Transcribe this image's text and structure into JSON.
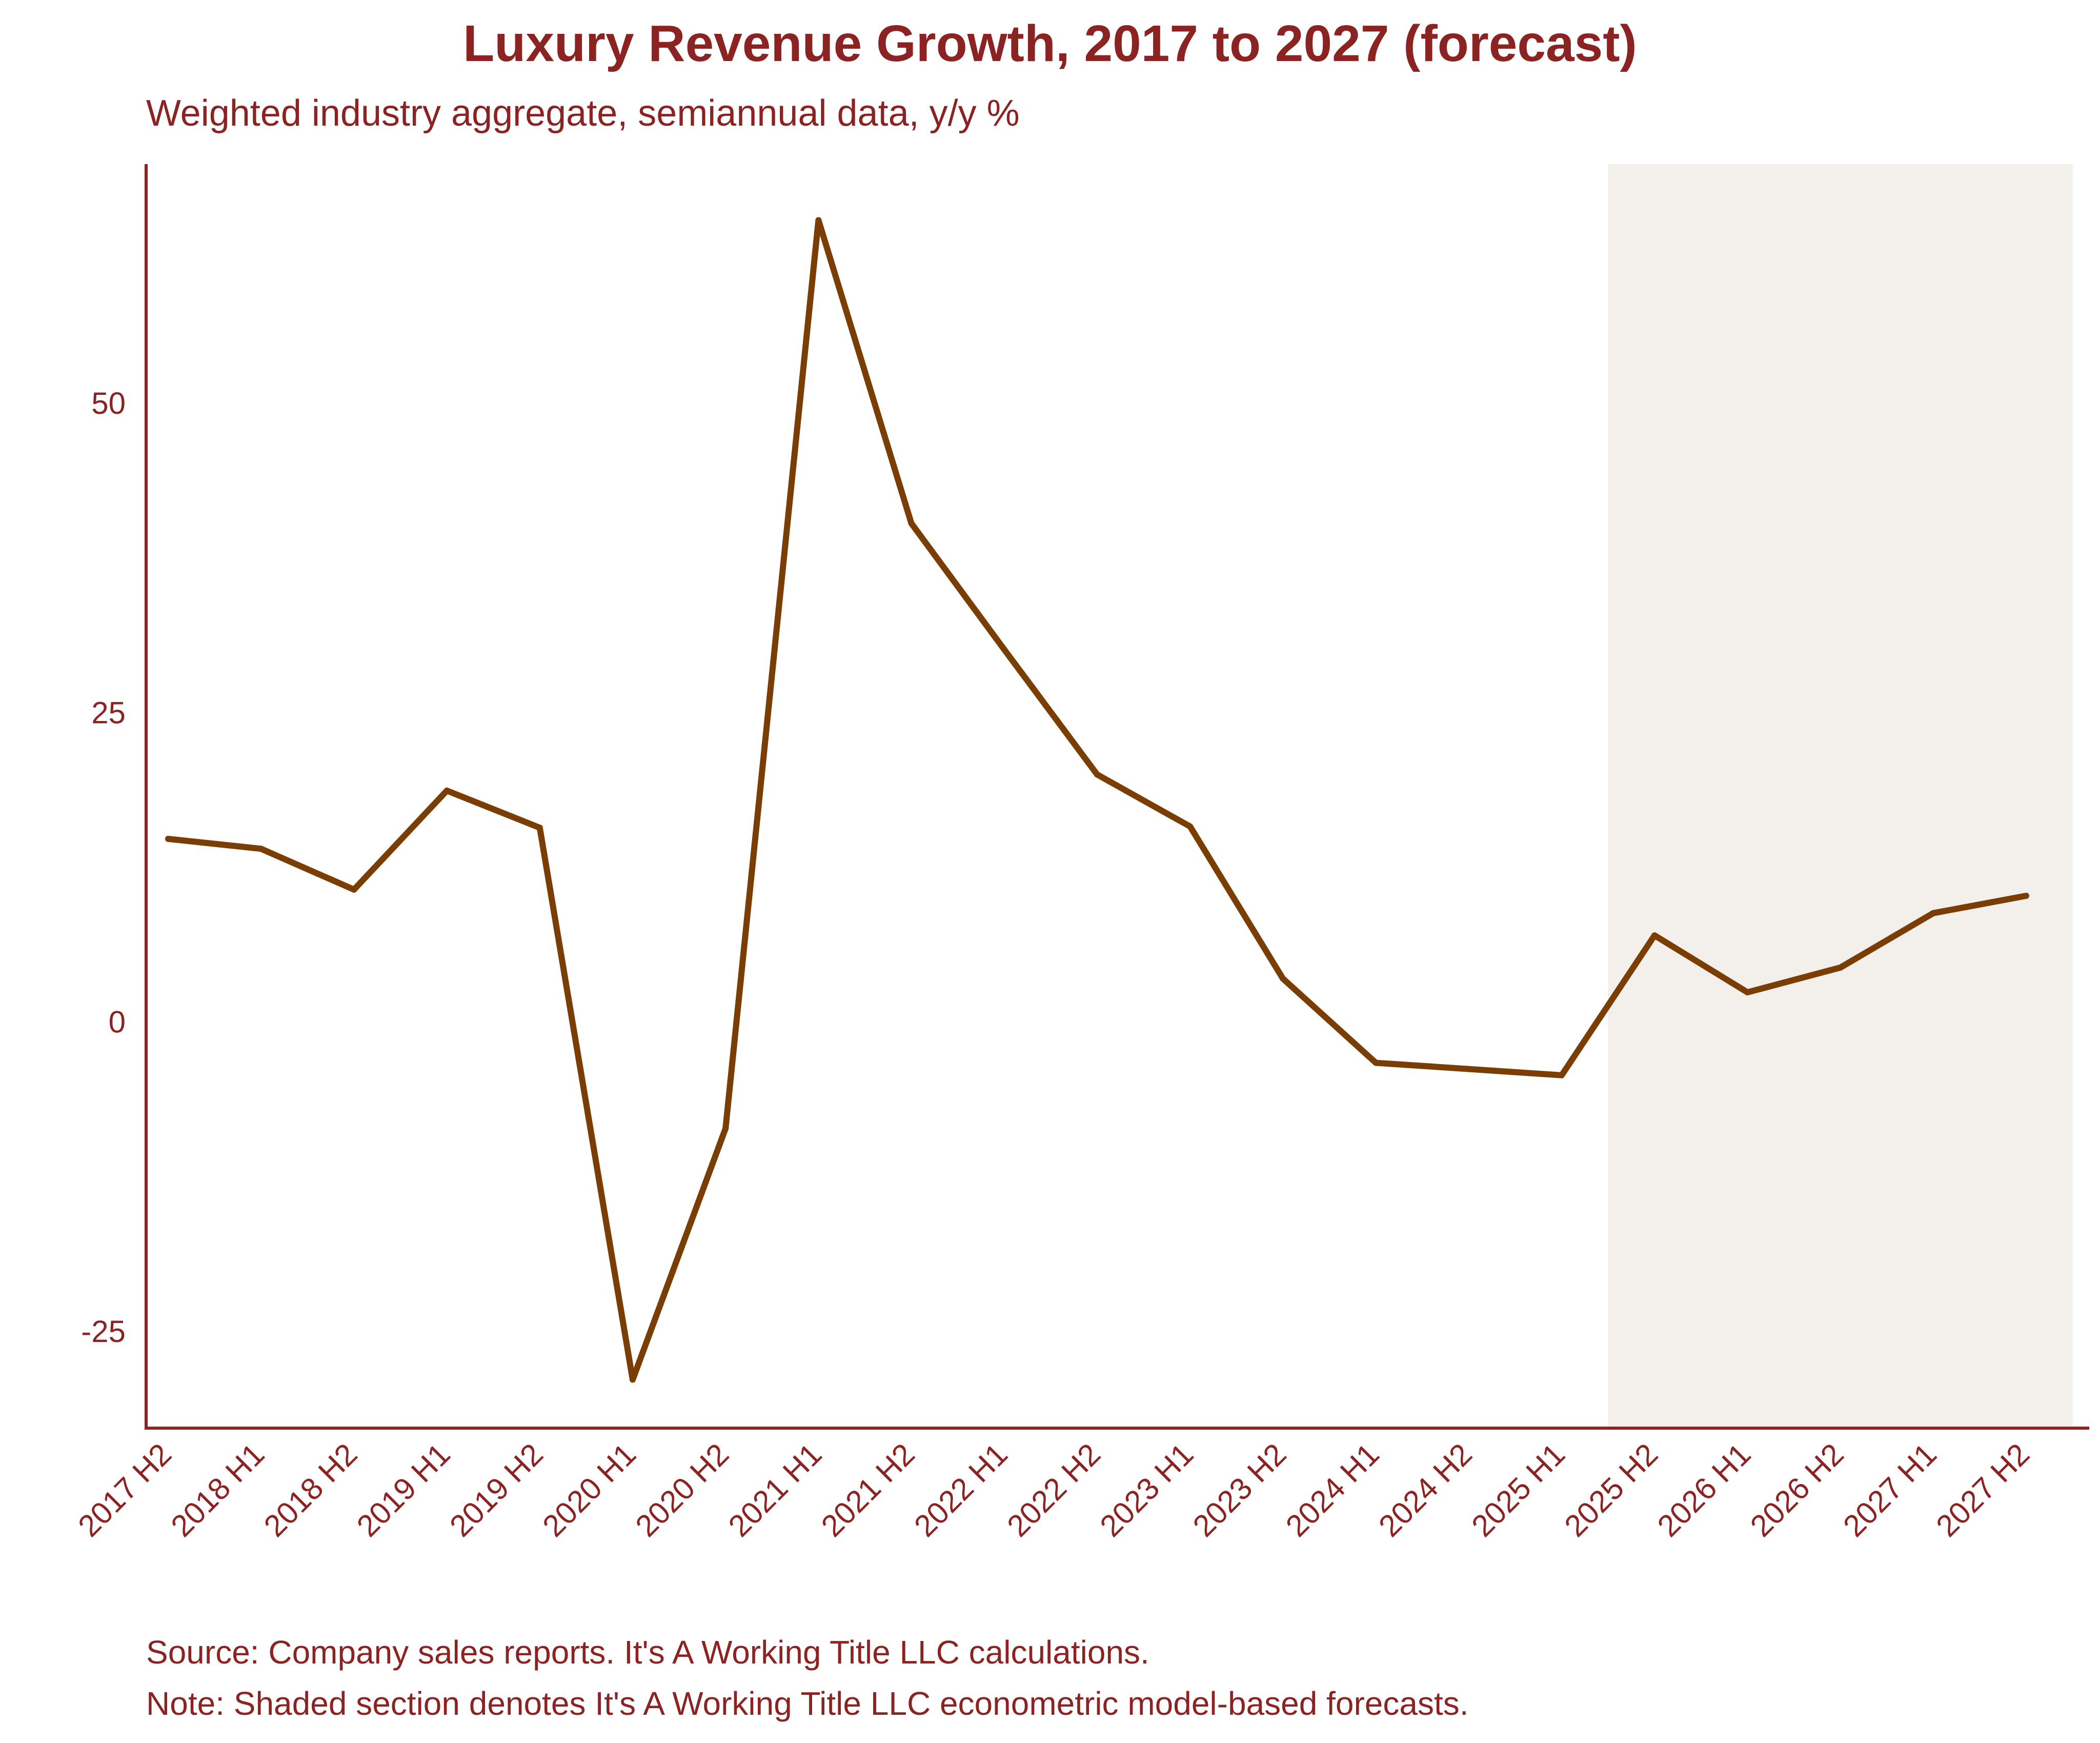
{
  "chart_data": {
    "type": "line",
    "title": "Luxury Revenue Growth, 2017 to 2027 (forecast)",
    "subtitle": "Weighted industry aggregate, semiannual data, y/y %",
    "xlabel": "",
    "ylabel": "",
    "categories": [
      "2017 H2",
      "2018 H1",
      "2018 H2",
      "2019 H1",
      "2019 H2",
      "2020 H1",
      "2020 H2",
      "2021 H1",
      "2021 H2",
      "2022 H1",
      "2022 H2",
      "2023 H1",
      "2023 H2",
      "2024 H1",
      "2024 H2",
      "2025 H1",
      "2025 H2",
      "2026 H1",
      "2026 H2",
      "2027 H1",
      "2027 H2"
    ],
    "series": [
      {
        "name": "Luxury revenue growth, y/y %",
        "color": "#7a3e05",
        "values": [
          14.8,
          14.0,
          10.7,
          18.7,
          15.7,
          -28.9,
          -8.6,
          64.8,
          40.3,
          30.1,
          20.0,
          15.8,
          3.5,
          -3.3,
          -3.8,
          -4.3,
          7.0,
          2.4,
          4.4,
          8.8,
          10.2
        ]
      }
    ],
    "ylim": [
      -33,
      69
    ],
    "yticks": [
      -25,
      0,
      25,
      50
    ],
    "ytick_labels": [
      "-25",
      "0",
      "25",
      "50"
    ],
    "grid": false,
    "forecast_shading": {
      "label": "forecast",
      "from_x": 15.5,
      "to_x": 20.5,
      "color": "#f3efeb"
    }
  },
  "notes": {
    "source": "Source: Company sales reports. It's A Working Title LLC calculations.",
    "forecast": "Note: Shaded section denotes It's A Working Title LLC econometric model-based forecasts."
  },
  "colors": {
    "text": "#8b2323",
    "axis": "#8b2323",
    "line": "#7a3e05",
    "shade": "#f3efeb"
  }
}
